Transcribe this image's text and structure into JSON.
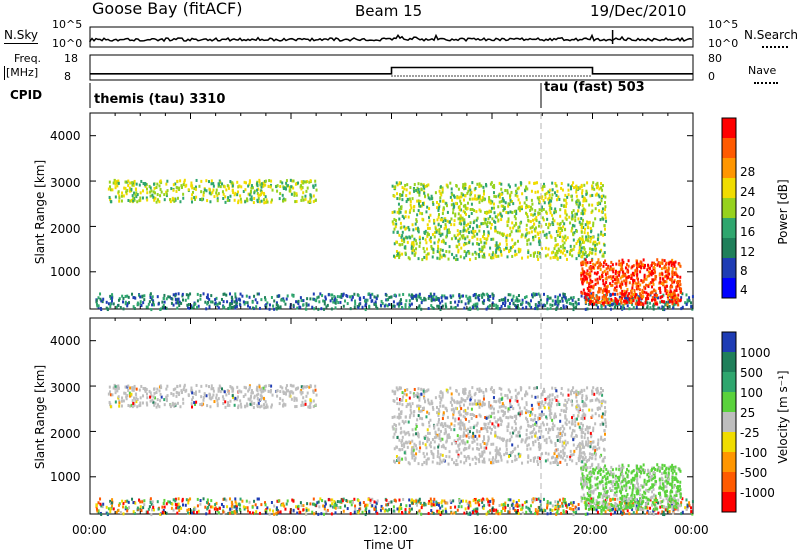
{
  "header": {
    "station": "Goose Bay (fitACF)",
    "beam": "Beam 15",
    "date": "19/Dec/2010"
  },
  "panels": {
    "nsky_label": "N.Sky",
    "nsky_ticks": [
      "10^5",
      "10^0"
    ],
    "nsearch_label": "N.Search",
    "nsearch_ticks": [
      "10^5",
      "10^0"
    ],
    "freq_label_top": "Freq.",
    "freq_label_unit": "[MHz]",
    "freq_ticks": [
      "18",
      "8"
    ],
    "nave_label": "Nave",
    "nave_ticks": [
      "80",
      "0"
    ],
    "cpid_label": "CPID",
    "cpid_segments": [
      {
        "label": "themis (tau) 3310",
        "start_hour": 0
      },
      {
        "label": "tau (fast) 503",
        "start_hour": 18
      }
    ]
  },
  "power_colorbar": {
    "title": "Power [dB]",
    "ticks": [
      "28",
      "24",
      "20",
      "16",
      "12",
      "8",
      "4"
    ],
    "colors": [
      "#ff0000",
      "#ff5a00",
      "#ff9600",
      "#f0dc00",
      "#96d21e",
      "#2fa66e",
      "#1f7f5a",
      "#1e3cb4",
      "#0000ff"
    ]
  },
  "velocity_colorbar": {
    "title": "Velocity [m s⁻¹]",
    "ticks": [
      "1000",
      "500",
      "100",
      "25",
      "-25",
      "-100",
      "-500",
      "-1000"
    ],
    "colors": [
      "#1e3cb4",
      "#1f7f5a",
      "#2fa66e",
      "#5ad23c",
      "#bebebe",
      "#f0dc00",
      "#ff9600",
      "#ff5a00",
      "#ff0000"
    ]
  },
  "axes": {
    "ylabel": "Slant Range [km]",
    "yticks": [
      "4000",
      "3000",
      "2000",
      "1000"
    ],
    "xticks": [
      "00:00",
      "04:00",
      "08:00",
      "12:00",
      "16:00",
      "20:00",
      "00:00"
    ],
    "xlabel": "Time UT"
  },
  "chart_data": {
    "type": "heatmap",
    "title": "Goose Bay (fitACF) Beam 15 19/Dec/2010",
    "xlabel": "Time UT",
    "ylabel": "Slant Range [km]",
    "xlim_hours": [
      0,
      24
    ],
    "ylim_km": [
      180,
      4500
    ],
    "frequency_mhz": [
      {
        "start": 0,
        "end": 12,
        "value": 10
      },
      {
        "start": 12,
        "end": 20,
        "value": 13
      },
      {
        "start": 20,
        "end": 24,
        "value": 10
      }
    ],
    "echo_regions": [
      {
        "t0": 0.2,
        "t1": 24,
        "r0": 200,
        "r1": 550,
        "power_db": 8,
        "velocity": "mixed"
      },
      {
        "t0": 0.7,
        "t1": 9,
        "r0": 2550,
        "r1": 3050,
        "power_db": 16,
        "velocity": "-25 to 25"
      },
      {
        "t0": 12,
        "t1": 20.5,
        "r0": 1300,
        "r1": 3000,
        "power_db": 16,
        "velocity": "-25 to 25"
      },
      {
        "t0": 19.5,
        "t1": 23.5,
        "r0": 300,
        "r1": 1300,
        "power_db": 28,
        "velocity": "25 to 100"
      }
    ]
  }
}
